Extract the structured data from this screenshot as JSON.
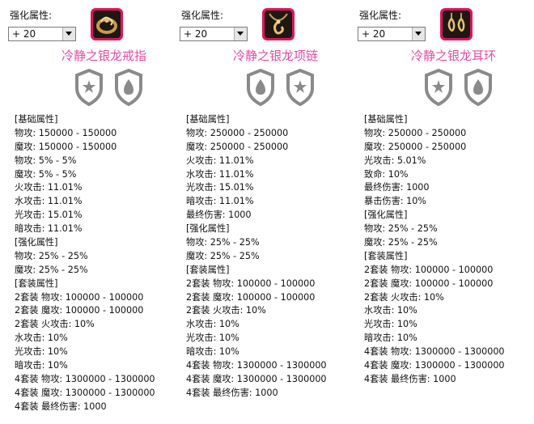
{
  "enhance_label": "强化属性:",
  "items": [
    {
      "enhance_value": "+ 20",
      "name": "冷静之银龙戒指",
      "icon": "ring-icon",
      "lines": [
        "[基础属性]",
        "物攻: 150000 - 150000",
        "魔攻: 150000 - 150000",
        "物攻: 5% - 5%",
        "魔攻: 5% - 5%",
        "火攻击: 11.01%",
        "水攻击: 11.01%",
        "光攻击: 15.01%",
        "暗攻击: 11.01%",
        "[强化属性]",
        "物攻: 25% - 25%",
        "魔攻: 25% - 25%",
        "[套装属性]",
        "2套装 物攻: 100000 - 100000",
        "2套装 魔攻: 100000 - 100000",
        "2套装 火攻击: 10%",
        "水攻击: 10%",
        "光攻击: 10%",
        "暗攻击: 10%",
        "4套装 物攻: 1300000 - 1300000",
        "4套装 魔攻: 1300000 - 1300000",
        "4套装 最终伤害: 1000"
      ]
    },
    {
      "enhance_value": "+ 20",
      "name": "冷静之银龙项链",
      "icon": "necklace-icon",
      "lines": [
        "[基础属性]",
        "物攻: 250000 - 250000",
        "魔攻: 250000 - 250000",
        "火攻击: 11.01%",
        "水攻击: 11.01%",
        "光攻击: 15.01%",
        "暗攻击: 11.01%",
        "最终伤害: 1000",
        "[强化属性]",
        "物攻: 25% - 25%",
        "魔攻: 25% - 25%",
        "[套装属性]",
        "2套装 物攻: 100000 - 100000",
        "2套装 魔攻: 100000 - 100000",
        "2套装 火攻击: 10%",
        "水攻击: 10%",
        "光攻击: 10%",
        "暗攻击: 10%",
        "4套装 物攻: 1300000 - 1300000",
        "4套装 魔攻: 1300000 - 1300000",
        "4套装 最终伤害: 1000"
      ]
    },
    {
      "enhance_value": "+ 20",
      "name": "冷静之银龙耳环",
      "icon": "earring-icon",
      "lines": [
        "[基础属性]",
        "物攻: 250000 - 250000",
        "魔攻: 250000 - 250000",
        "光攻击: 5.01%",
        "致命: 10%",
        "最终伤害: 1000",
        "暴击伤害: 10%",
        "[强化属性]",
        "物攻: 25% - 25%",
        "魔攻: 25% - 25%",
        "[套装属性]",
        "2套装 物攻: 100000 - 100000",
        "2套装 魔攻: 100000 - 100000",
        "2套装 火攻击: 10%",
        "水攻击: 10%",
        "光攻击: 10%",
        "暗攻击: 10%",
        "4套装 物攻: 1300000 - 1300000",
        "4套装 魔攻: 1300000 - 1300000",
        "4套装 最终伤害: 1000"
      ]
    }
  ]
}
